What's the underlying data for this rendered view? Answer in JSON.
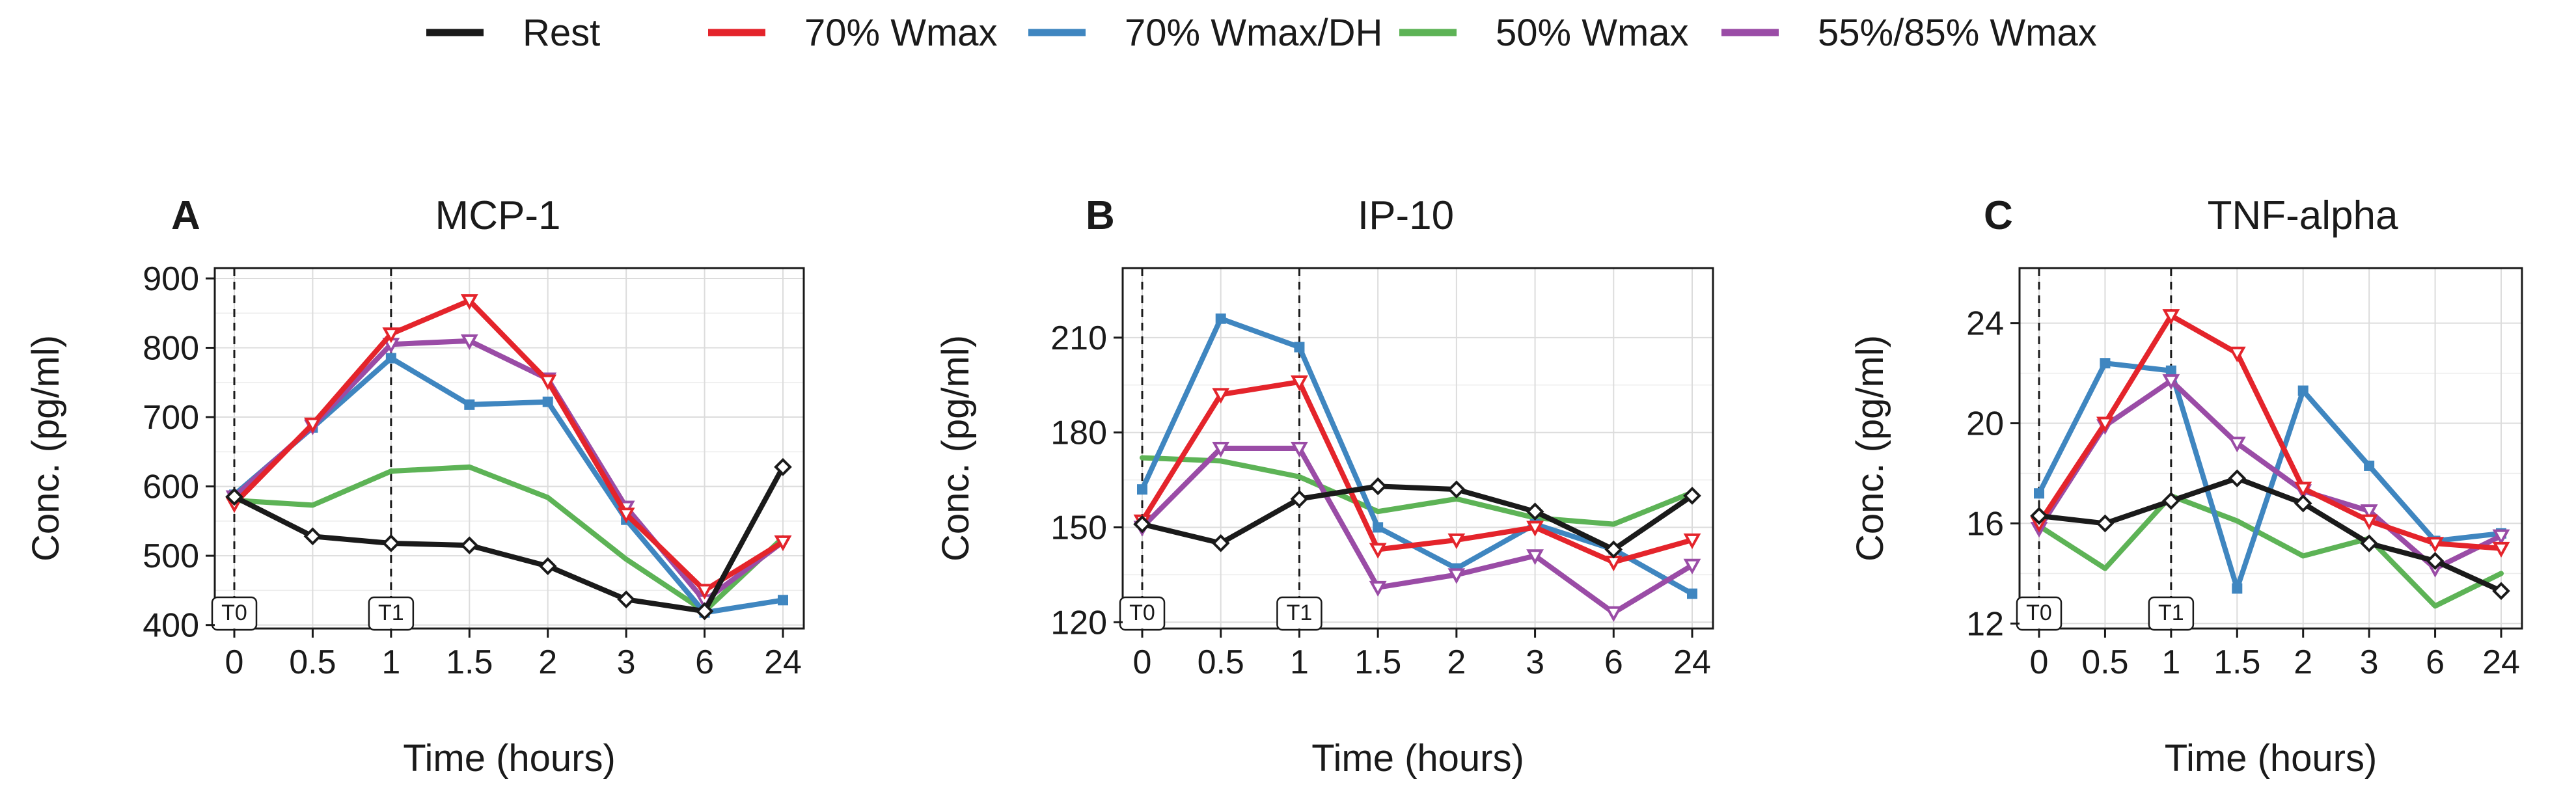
{
  "legend": [
    {
      "name": "Rest",
      "color": "#1a1a1a",
      "marker": "diamond"
    },
    {
      "name": "70% Wmax",
      "color": "#e4242b",
      "marker": "tri-down"
    },
    {
      "name": "70% Wmax/DH",
      "color": "#3f86c0",
      "marker": "square"
    },
    {
      "name": "50% Wmax",
      "color": "#5db356",
      "marker": "none"
    },
    {
      "name": "55%/85% Wmax",
      "color": "#9a4ca6",
      "marker": "tri-down"
    }
  ],
  "chart_data": [
    {
      "type": "line",
      "panel": "A",
      "title": "MCP-1",
      "xlabel": "Time (hours)",
      "ylabel": "Conc. (pg/ml)",
      "categories": [
        "0",
        "0.5",
        "1",
        "1.5",
        "2",
        "3",
        "6",
        "24"
      ],
      "ylim": [
        395,
        915
      ],
      "yticks": [
        400,
        500,
        600,
        700,
        800,
        900
      ],
      "markers_text": [
        "T0",
        "T1"
      ],
      "series": [
        {
          "name": "Rest",
          "values": [
            585,
            528,
            518,
            515,
            485,
            437,
            420,
            628
          ]
        },
        {
          "name": "70% Wmax",
          "values": [
            575,
            690,
            820,
            868,
            752,
            560,
            450,
            520
          ]
        },
        {
          "name": "70% Wmax/DH",
          "values": [
            588,
            685,
            785,
            718,
            722,
            552,
            418,
            436
          ]
        },
        {
          "name": "50% Wmax",
          "values": [
            580,
            573,
            622,
            628,
            584,
            495,
            420,
            526
          ]
        },
        {
          "name": "55%/85% Wmax",
          "values": [
            585,
            687,
            805,
            810,
            755,
            570,
            435,
            520
          ]
        }
      ]
    },
    {
      "type": "line",
      "panel": "B",
      "title": "IP-10",
      "xlabel": "Time (hours)",
      "ylabel": "Conc. (pg/ml)",
      "categories": [
        "0",
        "0.5",
        "1",
        "1.5",
        "2",
        "3",
        "6",
        "24"
      ],
      "ylim": [
        118,
        232
      ],
      "yticks": [
        120,
        150,
        180,
        210
      ],
      "markers_text": [
        "T0",
        "T1"
      ],
      "series": [
        {
          "name": "Rest",
          "values": [
            151,
            145,
            159,
            163,
            162,
            155,
            143,
            160
          ]
        },
        {
          "name": "70% Wmax",
          "values": [
            152,
            192,
            196,
            143,
            146,
            150,
            139,
            146
          ]
        },
        {
          "name": "70% Wmax/DH",
          "values": [
            162,
            216,
            207,
            150,
            137,
            151,
            143,
            129
          ]
        },
        {
          "name": "50% Wmax",
          "values": [
            172,
            171,
            166,
            155,
            159,
            153,
            151,
            161
          ]
        },
        {
          "name": "55%/85% Wmax",
          "values": [
            150,
            175,
            175,
            131,
            135,
            141,
            123,
            138
          ]
        }
      ]
    },
    {
      "type": "line",
      "panel": "C",
      "title": "TNF-alpha",
      "xlabel": "Time (hours)",
      "ylabel": "Conc. (pg/ml)",
      "categories": [
        "0",
        "0.5",
        "1",
        "1.5",
        "2",
        "3",
        "6",
        "24"
      ],
      "ylim": [
        11.8,
        26.2
      ],
      "yticks": [
        12,
        16,
        20,
        24
      ],
      "markers_text": [
        "T0",
        "T1"
      ],
      "series": [
        {
          "name": "Rest",
          "values": [
            16.3,
            16.0,
            16.9,
            17.8,
            16.8,
            15.2,
            14.5,
            13.3
          ]
        },
        {
          "name": "70% Wmax",
          "values": [
            16.0,
            20.0,
            24.3,
            22.8,
            17.4,
            16.1,
            15.2,
            15.0
          ]
        },
        {
          "name": "70% Wmax/DH",
          "values": [
            17.2,
            22.4,
            22.1,
            13.4,
            21.3,
            18.3,
            15.3,
            15.6
          ]
        },
        {
          "name": "50% Wmax",
          "values": [
            15.9,
            14.2,
            17.1,
            16.1,
            14.7,
            15.4,
            12.7,
            14.0
          ]
        },
        {
          "name": "55%/85% Wmax",
          "values": [
            15.8,
            19.9,
            21.7,
            19.2,
            17.3,
            16.5,
            14.2,
            15.5
          ]
        }
      ]
    }
  ]
}
